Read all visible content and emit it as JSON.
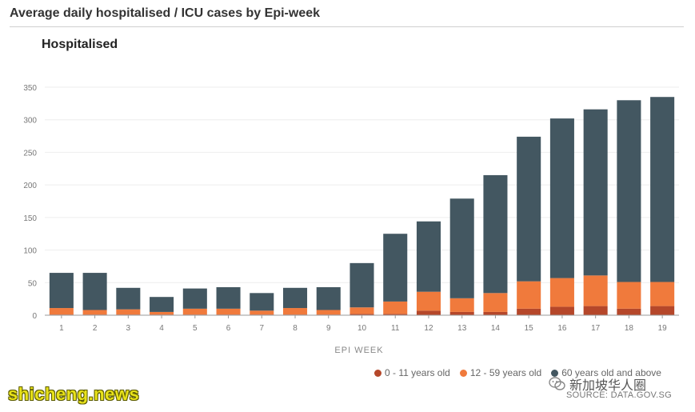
{
  "page": {
    "title": "Average daily hospitalised / ICU cases by Epi-week",
    "source": "SOURCE: DATA.GOV.SG",
    "watermark_left": "shicheng.news",
    "watermark_right": "新加坡华人圈"
  },
  "colors": {
    "age_0_11": "#b5472a",
    "age_12_59": "#f07a3c",
    "age_60_plus": "#435761",
    "grid": "#eeeeee",
    "axis": "#666666"
  },
  "chart_data": {
    "type": "bar",
    "stacked": true,
    "title": "Hospitalised",
    "xlabel": "EPI WEEK",
    "ylabel": "",
    "ylim": [
      0,
      350
    ],
    "yticks": [
      0,
      50,
      100,
      150,
      200,
      250,
      300,
      350
    ],
    "grid": true,
    "legend_position": "bottom-right",
    "categories": [
      "1",
      "2",
      "3",
      "4",
      "5",
      "6",
      "7",
      "8",
      "9",
      "10",
      "11",
      "12",
      "13",
      "14",
      "15",
      "16",
      "17",
      "18",
      "19"
    ],
    "series": [
      {
        "name": "0 - 11 years old",
        "values": [
          1,
          1,
          1,
          1,
          1,
          1,
          1,
          1,
          1,
          2,
          2,
          7,
          5,
          5,
          10,
          13,
          14,
          10,
          14
        ]
      },
      {
        "name": "12 - 59 years old",
        "values": [
          10,
          7,
          8,
          4,
          9,
          9,
          6,
          10,
          7,
          10,
          19,
          29,
          21,
          29,
          42,
          44,
          47,
          41,
          37
        ]
      },
      {
        "name": "60 years old and above",
        "values": [
          54,
          57,
          33,
          23,
          31,
          33,
          27,
          31,
          35,
          68,
          104,
          108,
          153,
          181,
          222,
          245,
          255,
          279,
          284
        ]
      }
    ]
  }
}
